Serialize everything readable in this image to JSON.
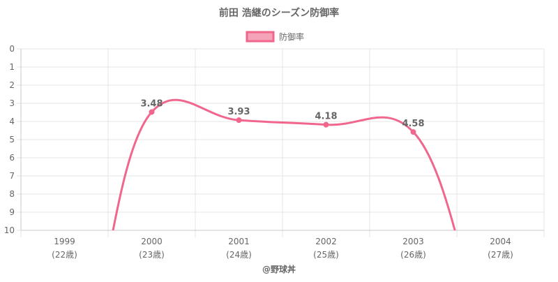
{
  "chart_data": {
    "type": "line",
    "title": "前田 浩継のシーズン防御率",
    "categories": [
      "1999",
      "2000",
      "2001",
      "2002",
      "2003",
      "2004"
    ],
    "sublabels": [
      "(22歳)",
      "(23歳)",
      "(24歳)",
      "(25歳)",
      "(26歳)",
      "(27歳)"
    ],
    "series": [
      {
        "name": "防御率",
        "values": [
          null,
          3.48,
          3.93,
          4.18,
          4.58,
          null
        ],
        "value_labels": [
          "",
          "3.48",
          "3.93",
          "4.18",
          "4.58",
          ""
        ]
      }
    ],
    "y_ticks": [
      "0",
      "1",
      "2",
      "3",
      "4",
      "5",
      "6",
      "7",
      "8",
      "9",
      "10"
    ],
    "ylim": [
      0,
      10
    ],
    "y_reversed": true,
    "grid": true,
    "legend_position": "top",
    "footer": "@野球丼",
    "colors": {
      "line": "#f0668c",
      "legend_fill": "#f5a3b9",
      "grid": "#e6e6e6",
      "axis": "#c8c8c8",
      "text": "#666666"
    }
  }
}
